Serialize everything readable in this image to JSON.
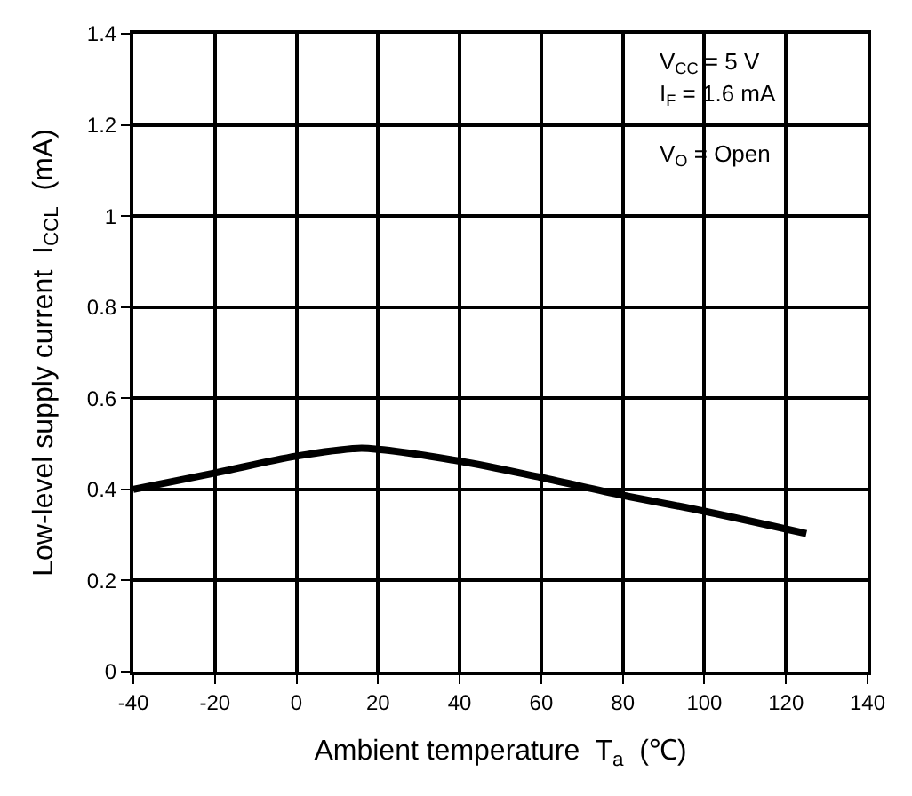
{
  "chart_data": {
    "type": "line",
    "xlabel": "Ambient temperature  T$_{a}$  (℃)",
    "ylabel": "Low-level supply current  I$_{CCL}$  (mA)",
    "x": [
      -40,
      -20,
      0,
      15,
      20,
      40,
      60,
      80,
      100,
      125
    ],
    "series": [
      {
        "color": "#000000",
        "values": [
          0.4,
          0.436,
          0.473,
          0.49,
          0.488,
          0.462,
          0.426,
          0.387,
          0.352,
          0.303
        ]
      }
    ],
    "xlim": [
      -40,
      140
    ],
    "xticks": [
      -40,
      -20,
      0,
      20,
      40,
      60,
      80,
      100,
      120,
      140
    ],
    "ylim": [
      0,
      1.4
    ],
    "yticks": [
      0,
      0.2,
      0.4,
      0.6,
      0.8,
      1,
      1.2,
      1.4
    ],
    "grid": true,
    "line_style": "solid",
    "marker": "none",
    "annotations": [
      "V$_{CC}$ = 5 V",
      "I$_{F}$ = 1.6 mA",
      "V$_{O}$ = Open"
    ]
  }
}
